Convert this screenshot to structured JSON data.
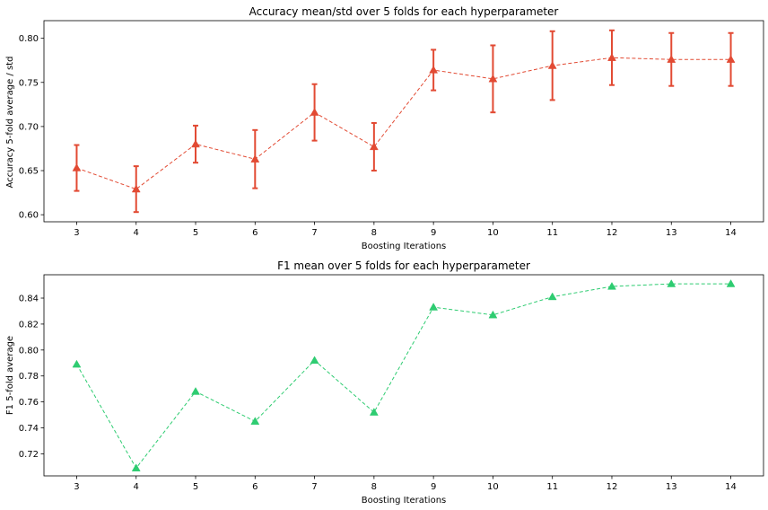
{
  "chart_data": [
    {
      "type": "line",
      "title": "Accuracy mean/std over 5 folds for each hyperparameter",
      "xlabel": "Boosting Iterations",
      "ylabel": "Accuracy 5-fold average / std",
      "x": [
        3,
        4,
        5,
        6,
        7,
        8,
        9,
        10,
        11,
        12,
        13,
        14
      ],
      "yticks": [
        "0.60",
        "0.65",
        "0.70",
        "0.75",
        "0.80"
      ],
      "ylim": [
        0.592,
        0.82
      ],
      "marker": "triangle",
      "line_style": "dashed",
      "color": "#e24a33",
      "grid": false,
      "series": [
        {
          "values": [
            0.653,
            0.629,
            0.68,
            0.663,
            0.716,
            0.677,
            0.764,
            0.754,
            0.769,
            0.778,
            0.776,
            0.776
          ],
          "error": [
            0.026,
            0.026,
            0.021,
            0.033,
            0.032,
            0.027,
            0.023,
            0.038,
            0.039,
            0.031,
            0.03,
            0.03
          ]
        }
      ]
    },
    {
      "type": "line",
      "title": "F1 mean over 5 folds for each hyperparameter",
      "xlabel": "Boosting Iterations",
      "ylabel": "F1 5-fold average",
      "x": [
        3,
        4,
        5,
        6,
        7,
        8,
        9,
        10,
        11,
        12,
        13,
        14
      ],
      "yticks": [
        "0.72",
        "0.74",
        "0.76",
        "0.78",
        "0.80",
        "0.82",
        "0.84"
      ],
      "ylim": [
        0.703,
        0.858
      ],
      "marker": "triangle",
      "line_style": "dashed",
      "color": "#2ecc71",
      "grid": false,
      "series": [
        {
          "values": [
            0.789,
            0.709,
            0.768,
            0.745,
            0.792,
            0.752,
            0.833,
            0.827,
            0.841,
            0.849,
            0.851,
            0.851
          ]
        }
      ]
    }
  ]
}
